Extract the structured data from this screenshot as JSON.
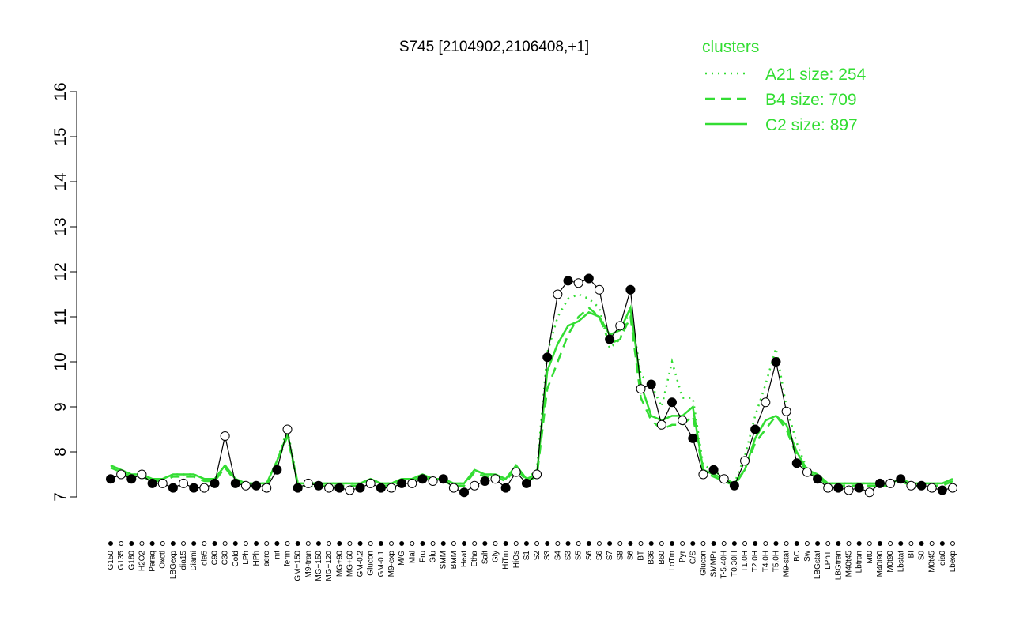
{
  "chart_data": {
    "type": "line",
    "title": "S745 [2104902,2106408,+1]",
    "legend_title": "clusters",
    "categories": [
      "G150",
      "G135",
      "G180",
      "H2O2",
      "Paraq",
      "Oxctl",
      "LBGexp",
      "dia15",
      "Diami",
      "dia5",
      "C90",
      "C30",
      "Cold",
      "LPh",
      "HPh",
      "aero",
      "nit",
      "ferm",
      "GM+150",
      "M9-tran",
      "MG+150",
      "MG+120",
      "MG+90",
      "MG+60",
      "GM-0.2",
      "Glucon",
      "GM-0.1",
      "M9-exp",
      "M/G",
      "Mal",
      "Fru",
      "Glu",
      "SMM",
      "BMM",
      "Heat",
      "Etha",
      "Salt",
      "Gly",
      "HiTm",
      "HiOs",
      "S1",
      "S2",
      "S3",
      "S4",
      "S3",
      "S5",
      "S6",
      "S6",
      "S7",
      "S8",
      "S6",
      "BT",
      "B36",
      "B60",
      "LoTm",
      "Pyr",
      "G/S",
      "Glucon",
      "SMMPr",
      "T-5.40H",
      "T0.30H",
      "T1.0H",
      "T2.0H",
      "T4.0H",
      "T5.0H",
      "M9-stat",
      "BC",
      "Sw",
      "LBGstat",
      "LPhT",
      "LBGtran",
      "M40t45",
      "Lbtran",
      "Mt0",
      "M40t90",
      "M0t90",
      "Lbstat",
      "BI",
      "S0",
      "M0t45",
      "dia0",
      "Lbexp"
    ],
    "series": [
      {
        "color": "#000000",
        "values": [
          7.4,
          7.5,
          7.4,
          7.5,
          7.3,
          7.3,
          7.2,
          7.3,
          7.2,
          7.2,
          7.3,
          8.35,
          7.3,
          7.25,
          7.25,
          7.2,
          7.6,
          8.5,
          7.2,
          7.3,
          7.25,
          7.2,
          7.2,
          7.15,
          7.2,
          7.3,
          7.2,
          7.2,
          7.3,
          7.3,
          7.4,
          7.35,
          7.4,
          7.2,
          7.1,
          7.25,
          7.35,
          7.4,
          7.2,
          7.55,
          7.3,
          7.5,
          10.1,
          11.5,
          11.8,
          11.75,
          11.85,
          11.6,
          10.5,
          10.8,
          11.6,
          9.4,
          9.5,
          8.6,
          9.1,
          8.7,
          8.3,
          7.5,
          7.6,
          7.4,
          7.25,
          7.8,
          8.5,
          9.1,
          10.0,
          8.9,
          7.75,
          7.55,
          7.4,
          7.2,
          7.2,
          7.15,
          7.2,
          7.1,
          7.3,
          7.3,
          7.4,
          7.25,
          7.25,
          7.2,
          7.15,
          7.2
        ]
      },
      {
        "name": "A21 size: 254",
        "color": "#33dd33",
        "style": "dotted",
        "values": [
          7.7,
          7.6,
          7.5,
          7.5,
          7.4,
          7.4,
          7.5,
          7.5,
          7.5,
          7.4,
          7.4,
          7.7,
          7.4,
          7.3,
          7.3,
          7.3,
          7.8,
          8.5,
          7.3,
          7.3,
          7.3,
          7.3,
          7.3,
          7.3,
          7.3,
          7.4,
          7.3,
          7.3,
          7.4,
          7.4,
          7.5,
          7.4,
          7.4,
          7.3,
          7.3,
          7.6,
          7.5,
          7.5,
          7.4,
          7.7,
          7.4,
          7.6,
          10.2,
          11.0,
          11.4,
          11.5,
          11.4,
          11.2,
          10.3,
          10.5,
          11.2,
          9.7,
          9.5,
          9.0,
          10.0,
          9.2,
          9.2,
          7.7,
          7.6,
          7.4,
          7.3,
          7.9,
          8.8,
          9.5,
          10.3,
          9.0,
          8.2,
          7.6,
          7.5,
          7.3,
          7.3,
          7.3,
          7.3,
          7.3,
          7.3,
          7.3,
          7.4,
          7.3,
          7.3,
          7.3,
          7.3,
          7.4
        ]
      },
      {
        "name": "B4 size: 709",
        "color": "#33dd33",
        "style": "dashed",
        "values": [
          7.65,
          7.55,
          7.45,
          7.45,
          7.35,
          7.35,
          7.45,
          7.45,
          7.45,
          7.35,
          7.35,
          7.65,
          7.35,
          7.25,
          7.25,
          7.25,
          7.75,
          8.35,
          7.25,
          7.25,
          7.25,
          7.25,
          7.25,
          7.25,
          7.25,
          7.35,
          7.25,
          7.25,
          7.35,
          7.35,
          7.45,
          7.35,
          7.35,
          7.25,
          7.25,
          7.55,
          7.45,
          7.45,
          7.35,
          7.65,
          7.35,
          7.45,
          9.4,
          10.0,
          10.6,
          11.0,
          11.2,
          11.0,
          10.4,
          10.5,
          11.0,
          9.2,
          8.7,
          8.5,
          8.6,
          8.6,
          8.8,
          7.55,
          7.45,
          7.35,
          7.25,
          7.6,
          8.2,
          8.5,
          8.8,
          8.5,
          7.9,
          7.55,
          7.45,
          7.25,
          7.25,
          7.25,
          7.25,
          7.25,
          7.25,
          7.25,
          7.35,
          7.25,
          7.25,
          7.25,
          7.25,
          7.35
        ]
      },
      {
        "name": "C2 size: 897",
        "color": "#33dd33",
        "style": "solid",
        "values": [
          7.7,
          7.6,
          7.5,
          7.5,
          7.4,
          7.4,
          7.5,
          7.5,
          7.5,
          7.4,
          7.4,
          7.7,
          7.4,
          7.3,
          7.3,
          7.3,
          7.8,
          8.4,
          7.3,
          7.3,
          7.3,
          7.3,
          7.3,
          7.3,
          7.3,
          7.4,
          7.3,
          7.3,
          7.4,
          7.4,
          7.5,
          7.4,
          7.4,
          7.3,
          7.3,
          7.6,
          7.5,
          7.5,
          7.4,
          7.7,
          7.4,
          7.5,
          9.8,
          10.4,
          10.8,
          10.9,
          11.1,
          11.0,
          10.6,
          10.7,
          11.2,
          9.5,
          8.8,
          8.7,
          8.8,
          8.8,
          9.0,
          7.6,
          7.5,
          7.4,
          7.3,
          7.6,
          8.3,
          8.7,
          8.8,
          8.6,
          8.0,
          7.6,
          7.5,
          7.3,
          7.3,
          7.3,
          7.3,
          7.3,
          7.3,
          7.3,
          7.4,
          7.3,
          7.3,
          7.3,
          7.3,
          7.4
        ]
      }
    ],
    "ylim": [
      7,
      16
    ],
    "yticks": [
      7,
      8,
      9,
      10,
      11,
      12,
      13,
      14,
      15,
      16
    ]
  }
}
